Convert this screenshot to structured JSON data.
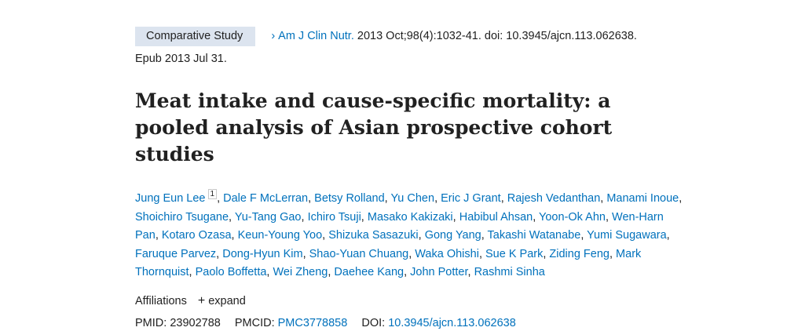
{
  "header": {
    "badge": "Comparative Study",
    "journal": "Am J Clin Nutr.",
    "citation": "2013 Oct;98(4):1032-41. doi: 10.3945/ajcn.113.062638.",
    "epub": "Epub 2013 Jul 31."
  },
  "title": "Meat intake and cause-specific mortality: a pooled analysis of Asian prospective cohort studies",
  "authors": [
    {
      "name": "Jung Eun Lee",
      "sup": "1"
    },
    {
      "name": "Dale F McLerran"
    },
    {
      "name": "Betsy Rolland"
    },
    {
      "name": "Yu Chen"
    },
    {
      "name": "Eric J Grant"
    },
    {
      "name": "Rajesh Vedanthan"
    },
    {
      "name": "Manami Inoue"
    },
    {
      "name": "Shoichiro Tsugane"
    },
    {
      "name": "Yu-Tang Gao"
    },
    {
      "name": "Ichiro Tsuji"
    },
    {
      "name": "Masako Kakizaki"
    },
    {
      "name": "Habibul Ahsan"
    },
    {
      "name": "Yoon-Ok Ahn"
    },
    {
      "name": "Wen-Harn Pan"
    },
    {
      "name": "Kotaro Ozasa"
    },
    {
      "name": "Keun-Young Yoo"
    },
    {
      "name": "Shizuka Sasazuki"
    },
    {
      "name": "Gong Yang"
    },
    {
      "name": "Takashi Watanabe"
    },
    {
      "name": "Yumi Sugawara"
    },
    {
      "name": "Faruque Parvez"
    },
    {
      "name": "Dong-Hyun Kim"
    },
    {
      "name": "Shao-Yuan Chuang"
    },
    {
      "name": "Waka Ohishi"
    },
    {
      "name": "Sue K Park"
    },
    {
      "name": "Ziding Feng"
    },
    {
      "name": "Mark Thornquist"
    },
    {
      "name": "Paolo Boffetta"
    },
    {
      "name": "Wei Zheng"
    },
    {
      "name": "Daehee Kang"
    },
    {
      "name": "John Potter"
    },
    {
      "name": "Rashmi Sinha"
    }
  ],
  "affiliations": {
    "label": "Affiliations",
    "expand": "expand"
  },
  "ids": {
    "pmid_label": "PMID:",
    "pmid": "23902788",
    "pmcid_label": "PMCID:",
    "pmcid": "PMC3778858",
    "doi_label": "DOI:",
    "doi": "10.3945/ajcn.113.062638"
  },
  "colors": {
    "link": "#0071bc",
    "badge_bg": "#dce4ef",
    "text": "#212121"
  }
}
